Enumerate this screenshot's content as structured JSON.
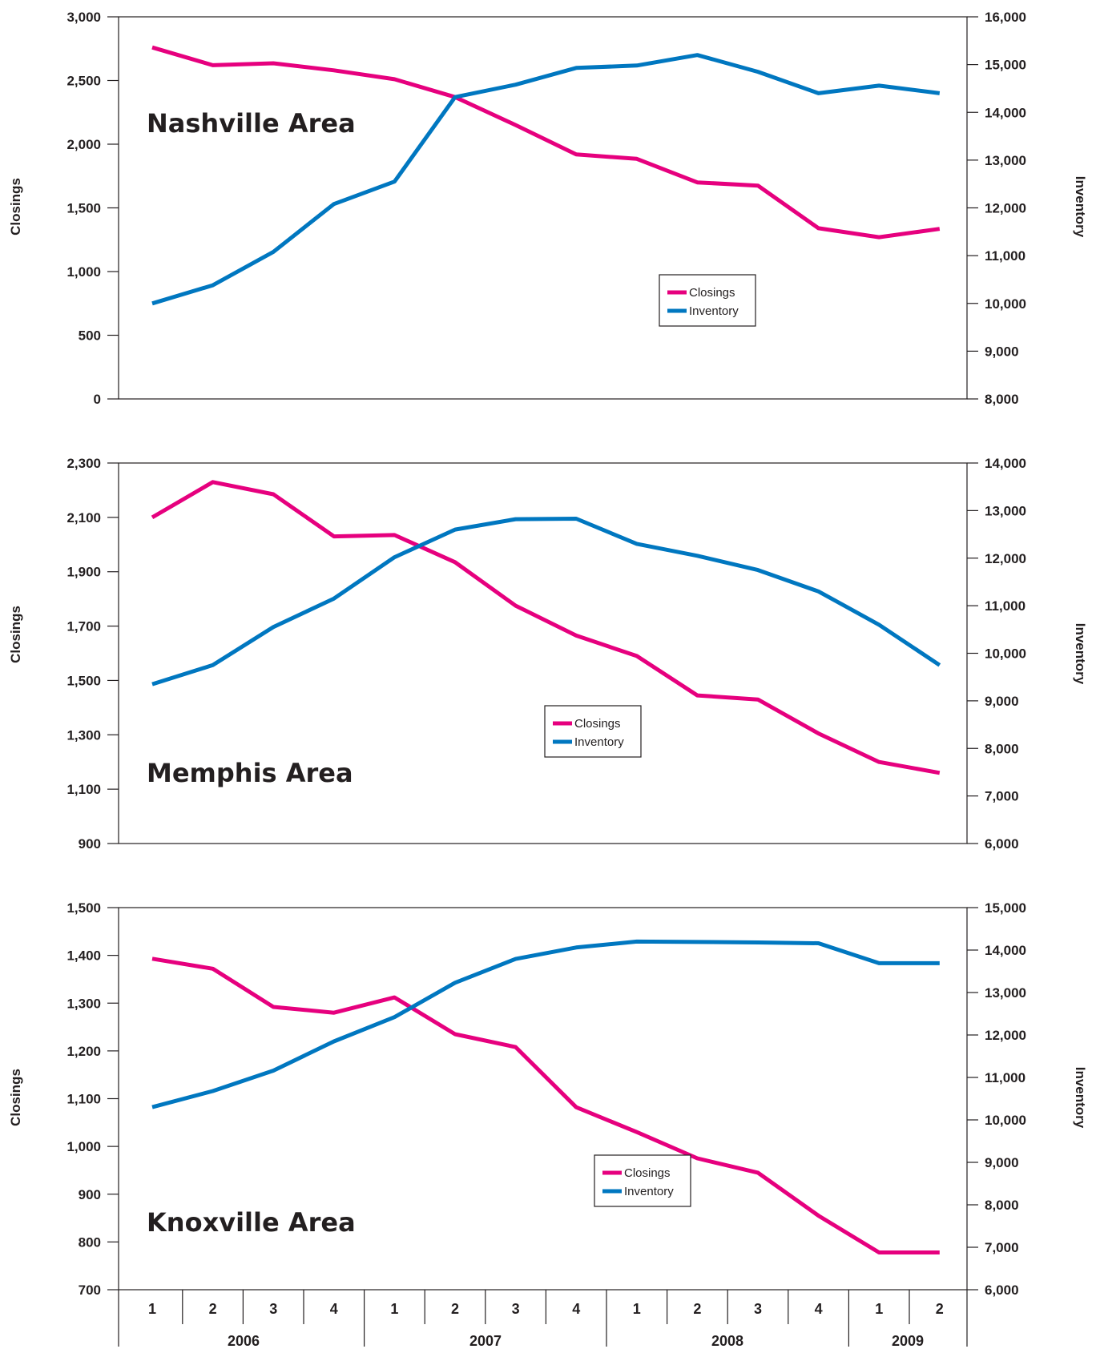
{
  "chart_data": [
    {
      "type": "line",
      "title": "Nashville Area",
      "ylabel": "Closings",
      "y2label": "Inventory",
      "ylim": [
        0,
        3000
      ],
      "y2lim": [
        8000,
        16000
      ],
      "yticks": [
        "0",
        "500",
        "1,000",
        "1,500",
        "2,000",
        "2,500",
        "3,000"
      ],
      "y2ticks": [
        "8,000",
        "9,000",
        "10,000",
        "11,000",
        "12,000",
        "13,000",
        "14,000",
        "15,000",
        "16,000"
      ],
      "legend": "center-right",
      "series": [
        {
          "name": "Closings",
          "axis": "left",
          "color": "#e6007e",
          "values": [
            2760,
            2620,
            2635,
            2580,
            2510,
            2370,
            2150,
            1920,
            1885,
            1700,
            1675,
            1340,
            1270,
            1335
          ]
        },
        {
          "name": "Inventory",
          "axis": "right",
          "color": "#0077c0",
          "values": [
            10000,
            10380,
            11080,
            12080,
            12550,
            14320,
            14580,
            14930,
            14980,
            15200,
            14850,
            14400,
            14560,
            14400
          ]
        }
      ]
    },
    {
      "type": "line",
      "title": "Memphis Area",
      "ylabel": "Closings",
      "y2label": "Inventory",
      "ylim": [
        900,
        2300
      ],
      "y2lim": [
        6000,
        14000
      ],
      "yticks": [
        "900",
        "1,100",
        "1,300",
        "1,500",
        "1,700",
        "1,900",
        "2,100",
        "2,300"
      ],
      "y2ticks": [
        "6,000",
        "7,000",
        "8,000",
        "9,000",
        "10,000",
        "11,000",
        "12,000",
        "13,000",
        "14,000"
      ],
      "legend": "center",
      "series": [
        {
          "name": "Closings",
          "axis": "left",
          "color": "#e6007e",
          "values": [
            2100,
            2230,
            2185,
            2030,
            2035,
            1935,
            1775,
            1665,
            1590,
            1445,
            1430,
            1305,
            1200,
            1160
          ]
        },
        {
          "name": "Inventory",
          "axis": "right",
          "color": "#0077c0",
          "values": [
            9350,
            9750,
            10550,
            11150,
            12020,
            12600,
            12820,
            12830,
            12300,
            12050,
            11750,
            11300,
            10600,
            9750
          ]
        }
      ]
    },
    {
      "type": "line",
      "title": "Knoxville Area",
      "ylabel": "Closings",
      "y2label": "Inventory",
      "ylim": [
        700,
        1500
      ],
      "y2lim": [
        6000,
        15000
      ],
      "yticks": [
        "700",
        "800",
        "900",
        "1,000",
        "1,100",
        "1,200",
        "1,300",
        "1,400",
        "1,500"
      ],
      "y2ticks": [
        "6,000",
        "7,000",
        "8,000",
        "9,000",
        "10,000",
        "11,000",
        "12,000",
        "13,000",
        "14,000",
        "15,000"
      ],
      "legend": "center",
      "series": [
        {
          "name": "Closings",
          "axis": "left",
          "color": "#e6007e",
          "values": [
            1393,
            1372,
            1292,
            1280,
            1312,
            1235,
            1208,
            1082,
            1030,
            975,
            945,
            855,
            778,
            778
          ]
        },
        {
          "name": "Inventory",
          "axis": "right",
          "color": "#0077c0",
          "values": [
            10300,
            10680,
            11160,
            11850,
            12420,
            13230,
            13790,
            14060,
            14200,
            14190,
            14180,
            14160,
            13690,
            13690
          ]
        }
      ]
    }
  ],
  "x_axis": {
    "quarters": [
      "1",
      "2",
      "3",
      "4",
      "1",
      "2",
      "3",
      "4",
      "1",
      "2",
      "3",
      "4",
      "1",
      "2"
    ],
    "years": [
      "2006",
      "2007",
      "2008",
      "2009"
    ]
  }
}
